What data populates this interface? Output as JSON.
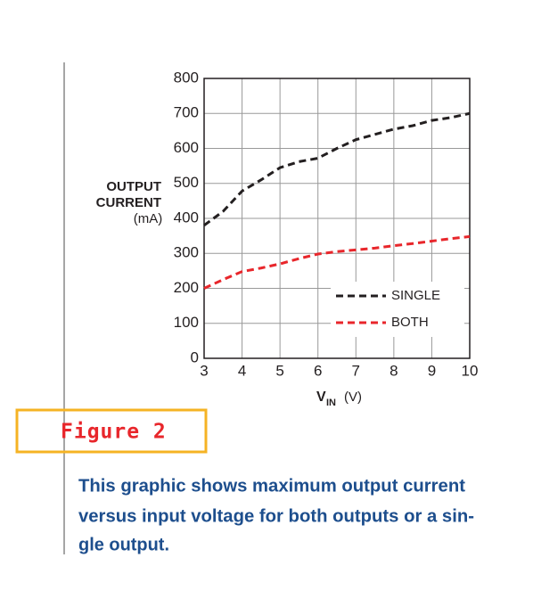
{
  "chart_data": {
    "type": "line",
    "ylabel": [
      "OUTPUT",
      "CURRENT",
      "(mA)"
    ],
    "xlabel": {
      "main": "V",
      "sub": "IN",
      "unit": "(V)"
    },
    "x": [
      3,
      3.5,
      4,
      4.5,
      5,
      5.5,
      6,
      6.5,
      7,
      7.5,
      8,
      8.5,
      9,
      9.5,
      10
    ],
    "series": [
      {
        "name": "SINGLE",
        "color": "#231f20",
        "values": [
          380,
          420,
          478,
          510,
          545,
          562,
          572,
          600,
          625,
          640,
          655,
          665,
          680,
          688,
          700
        ]
      },
      {
        "name": "BOTH",
        "color": "#e8262b",
        "values": [
          200,
          225,
          248,
          258,
          270,
          285,
          298,
          305,
          310,
          315,
          322,
          328,
          335,
          342,
          348
        ]
      }
    ],
    "xlim": [
      3,
      10
    ],
    "xticks": [
      3,
      4,
      5,
      6,
      7,
      8,
      9,
      10
    ],
    "ylim": [
      0,
      800
    ],
    "yticks": [
      0,
      100,
      200,
      300,
      400,
      500,
      600,
      700,
      800
    ],
    "grid": true,
    "legend": "lower right",
    "line_style": "dashed"
  },
  "figure_label": "Figure 2",
  "caption": [
    "This graphic shows maximum output current",
    "versus input voltage for both outputs or a sin-",
    "gle output."
  ]
}
